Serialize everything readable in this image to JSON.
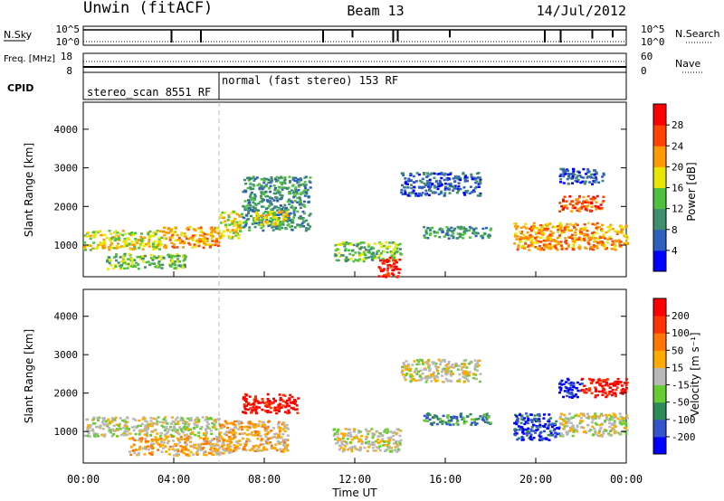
{
  "chart_data": [
    {
      "type": "line",
      "header": {
        "station": "Unwin (fitACF)",
        "beam": "Beam 13",
        "date": "14/Jul/2012"
      },
      "panel": "noise",
      "left_label": "N.Sky",
      "right_label": "N.Search",
      "left_ticks": [
        "10^5",
        "10^0"
      ],
      "right_ticks": [
        "10^5",
        "10^0"
      ],
      "series": [
        {
          "name": "N.Sky",
          "style": "solid",
          "dips": [
            [
              3.9,
              1.0
            ],
            [
              5.2,
              1.0
            ],
            [
              10.6,
              1.0
            ],
            [
              11.9,
              0.6
            ],
            [
              13.7,
              1.0
            ],
            [
              13.9,
              0.9
            ],
            [
              16.2,
              0.6
            ],
            [
              20.4,
              1.0
            ],
            [
              21.1,
              1.0
            ],
            [
              22.5,
              0.7
            ],
            [
              23.4,
              0.6
            ]
          ]
        },
        {
          "name": "N.Search",
          "style": "dotted"
        }
      ]
    },
    {
      "type": "line",
      "panel": "frequency",
      "left_label": "Freq. [MHz]",
      "right_label": "Nave",
      "left_ticks": [
        "18",
        "8"
      ],
      "right_ticks": [
        "60",
        "0"
      ],
      "freq_mhz": 12.2,
      "nave": 6
    },
    {
      "type": "table",
      "panel": "cpid",
      "label": "CPID",
      "segments": [
        {
          "text": "stereo_scan 8551 RF",
          "start_ut": 0,
          "end_ut": 6.0
        },
        {
          "text": "normal (fast stereo) 153 RF",
          "start_ut": 6.0,
          "end_ut": 24.0
        }
      ]
    },
    {
      "type": "heatmap",
      "panel": "power",
      "ylabel": "Slant Range [km]",
      "yticks": [
        1000,
        2000,
        3000,
        4000
      ],
      "ylim": [
        180,
        4700
      ],
      "colorbar": {
        "label": "Power [dB]",
        "ticks": [
          "4",
          "8",
          "12",
          "16",
          "20",
          "24",
          "28"
        ],
        "colors": [
          "#0000ff",
          "#2f5fbf",
          "#3f8f6f",
          "#4fbf3f",
          "#e6e600",
          "#ff9900",
          "#ff4400",
          "#ff0000"
        ]
      },
      "echo_regions": [
        {
          "t0": 0.0,
          "t1": 3.5,
          "r0": 900,
          "r1": 1400,
          "level": 4
        },
        {
          "t0": 3.5,
          "t1": 6.0,
          "r0": 950,
          "r1": 1500,
          "level": 5
        },
        {
          "t0": 6.0,
          "t1": 7.0,
          "r0": 1200,
          "r1": 1900,
          "level": 4
        },
        {
          "t0": 1.0,
          "t1": 4.5,
          "r0": 400,
          "r1": 800,
          "level": 3
        },
        {
          "t0": 7.0,
          "t1": 10.0,
          "r0": 1400,
          "r1": 2800,
          "level": 2
        },
        {
          "t0": 7.5,
          "t1": 9.0,
          "r0": 1500,
          "r1": 1900,
          "level": 4
        },
        {
          "t0": 11.0,
          "t1": 14.0,
          "r0": 600,
          "r1": 1100,
          "level": 3
        },
        {
          "t0": 13.0,
          "t1": 14.0,
          "r0": 200,
          "r1": 700,
          "level": 7
        },
        {
          "t0": 14.0,
          "t1": 17.5,
          "r0": 2300,
          "r1": 2900,
          "level": 1
        },
        {
          "t0": 15.0,
          "t1": 18.0,
          "r0": 1200,
          "r1": 1500,
          "level": 2
        },
        {
          "t0": 19.0,
          "t1": 24.0,
          "r0": 900,
          "r1": 1600,
          "level": 5
        },
        {
          "t0": 21.0,
          "t1": 23.0,
          "r0": 1900,
          "r1": 2300,
          "level": 6
        },
        {
          "t0": 21.0,
          "t1": 23.0,
          "r0": 2600,
          "r1": 3000,
          "level": 1
        }
      ]
    },
    {
      "type": "heatmap",
      "panel": "velocity",
      "ylabel": "Slant Range [km]",
      "xlabel": "Time UT",
      "xticks": [
        "00:00",
        "04:00",
        "08:00",
        "12:00",
        "16:00",
        "20:00",
        "00:00"
      ],
      "yticks": [
        1000,
        2000,
        3000,
        4000
      ],
      "ylim": [
        180,
        4700
      ],
      "colorbar": {
        "label": "Velocity [m s⁻¹]",
        "ticks": [
          "200",
          "100",
          "50",
          "15",
          "-15",
          "-50",
          "-100",
          "-200"
        ],
        "colors": [
          "#0000ff",
          "#3355cc",
          "#2e8b57",
          "#66cc33",
          "#b8b8b8",
          "#ffaa00",
          "#ff7700",
          "#ff3300",
          "#ff0000"
        ]
      },
      "echo_regions": [
        {
          "t0": 0.0,
          "t1": 6.0,
          "r0": 900,
          "r1": 1400,
          "level": 4
        },
        {
          "t0": 2.0,
          "t1": 6.5,
          "r0": 400,
          "r1": 900,
          "level": 5
        },
        {
          "t0": 7.0,
          "t1": 9.5,
          "r0": 1500,
          "r1": 2000,
          "level": 8
        },
        {
          "t0": 6.0,
          "t1": 9.0,
          "r0": 500,
          "r1": 1300,
          "level": 5
        },
        {
          "t0": 11.0,
          "t1": 14.0,
          "r0": 500,
          "r1": 1100,
          "level": 4
        },
        {
          "t0": 14.0,
          "t1": 17.5,
          "r0": 2300,
          "r1": 2900,
          "level": 4
        },
        {
          "t0": 15.0,
          "t1": 18.0,
          "r0": 1200,
          "r1": 1500,
          "level": 2
        },
        {
          "t0": 19.0,
          "t1": 21.0,
          "r0": 800,
          "r1": 1500,
          "level": 1
        },
        {
          "t0": 21.0,
          "t1": 24.0,
          "r0": 900,
          "r1": 1500,
          "level": 4
        },
        {
          "t0": 21.0,
          "t1": 22.0,
          "r0": 1900,
          "r1": 2400,
          "level": 0
        },
        {
          "t0": 22.0,
          "t1": 24.0,
          "r0": 1900,
          "r1": 2400,
          "level": 8
        }
      ]
    }
  ]
}
